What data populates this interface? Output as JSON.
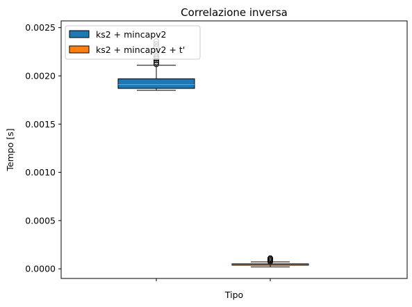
{
  "chart_data": {
    "type": "box",
    "title": "Correlazione inversa",
    "xlabel": "Tipo",
    "ylabel": "Tempo [s]",
    "ylim": [
      -0.0001,
      0.00257
    ],
    "yticks": [
      "0.0000",
      "0.0005",
      "0.0010",
      "0.0015",
      "0.0020",
      "0.0025"
    ],
    "ytick_values": [
      0,
      0.0005,
      0.001,
      0.0015,
      0.002,
      0.0025
    ],
    "grid": false,
    "legend_position": "upper-left",
    "series": [
      {
        "name": "ks2 + mincapv2",
        "color": "#1f77b4",
        "whisker_low": 0.00185,
        "q1": 0.00187,
        "median": 0.00191,
        "q3": 0.00197,
        "whisker_high": 0.00211,
        "outliers": [
          0.00212,
          0.00214,
          0.00216,
          0.00218,
          0.0022,
          0.00223,
          0.00226,
          0.0023,
          0.00233,
          0.00236
        ]
      },
      {
        "name": "ks2 + mincapv2 + t'",
        "color": "#ff7f0e",
        "whisker_low": 2e-05,
        "q1": 4e-05,
        "median": 4.7e-05,
        "q3": 5.2e-05,
        "whisker_high": 7.2e-05,
        "outliers": [
          7.5e-05,
          8.5e-05,
          9.5e-05,
          0.000105,
          0.00011
        ]
      }
    ]
  }
}
